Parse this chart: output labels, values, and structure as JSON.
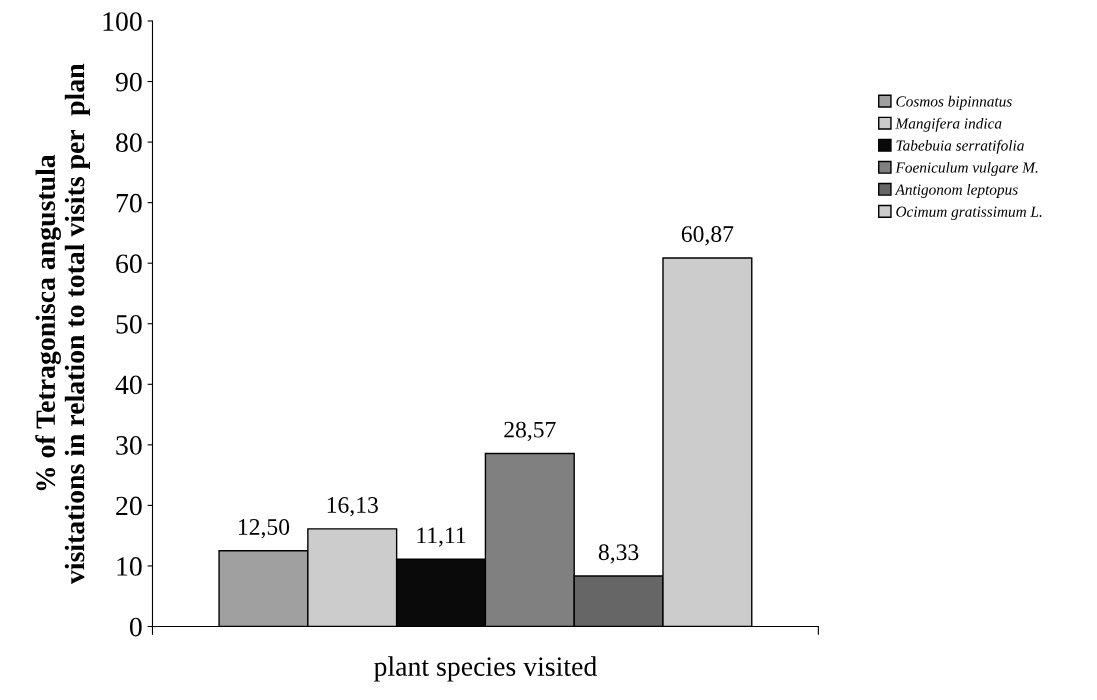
{
  "chart_data": {
    "type": "bar",
    "xlabel": "plant species visited",
    "ylabel": "% of Tetragonisca angustula\nvisitations in relation to total visits per  plan",
    "categories": [
      null
    ],
    "series": [
      {
        "name": "Cosmos bipinnatus",
        "color": "#a0a0a0",
        "values": [
          12.5
        ],
        "value_labels": [
          "12,50"
        ]
      },
      {
        "name": "Mangifera indica",
        "color": "#cccccc",
        "values": [
          16.13
        ],
        "value_labels": [
          "16,13"
        ]
      },
      {
        "name": "Tabebuia serratifolia",
        "color": "#0a0a0a",
        "values": [
          11.11
        ],
        "value_labels": [
          "11,11"
        ]
      },
      {
        "name": "Foeniculum vulgare M.",
        "color": "#808080",
        "values": [
          28.57
        ],
        "value_labels": [
          "28,57"
        ]
      },
      {
        "name": "Antigonom leptopus",
        "color": "#666666",
        "values": [
          8.33
        ],
        "value_labels": [
          "8,33"
        ]
      },
      {
        "name": "Ocimum gratissimum L.",
        "color": "#cccccc",
        "values": [
          60.87
        ],
        "value_labels": [
          "60,87"
        ]
      }
    ],
    "ylim": [
      0,
      100
    ],
    "yticks": [
      0,
      10,
      20,
      30,
      40,
      50,
      60,
      70,
      80,
      90,
      100
    ],
    "grid": false,
    "legend": "right"
  }
}
